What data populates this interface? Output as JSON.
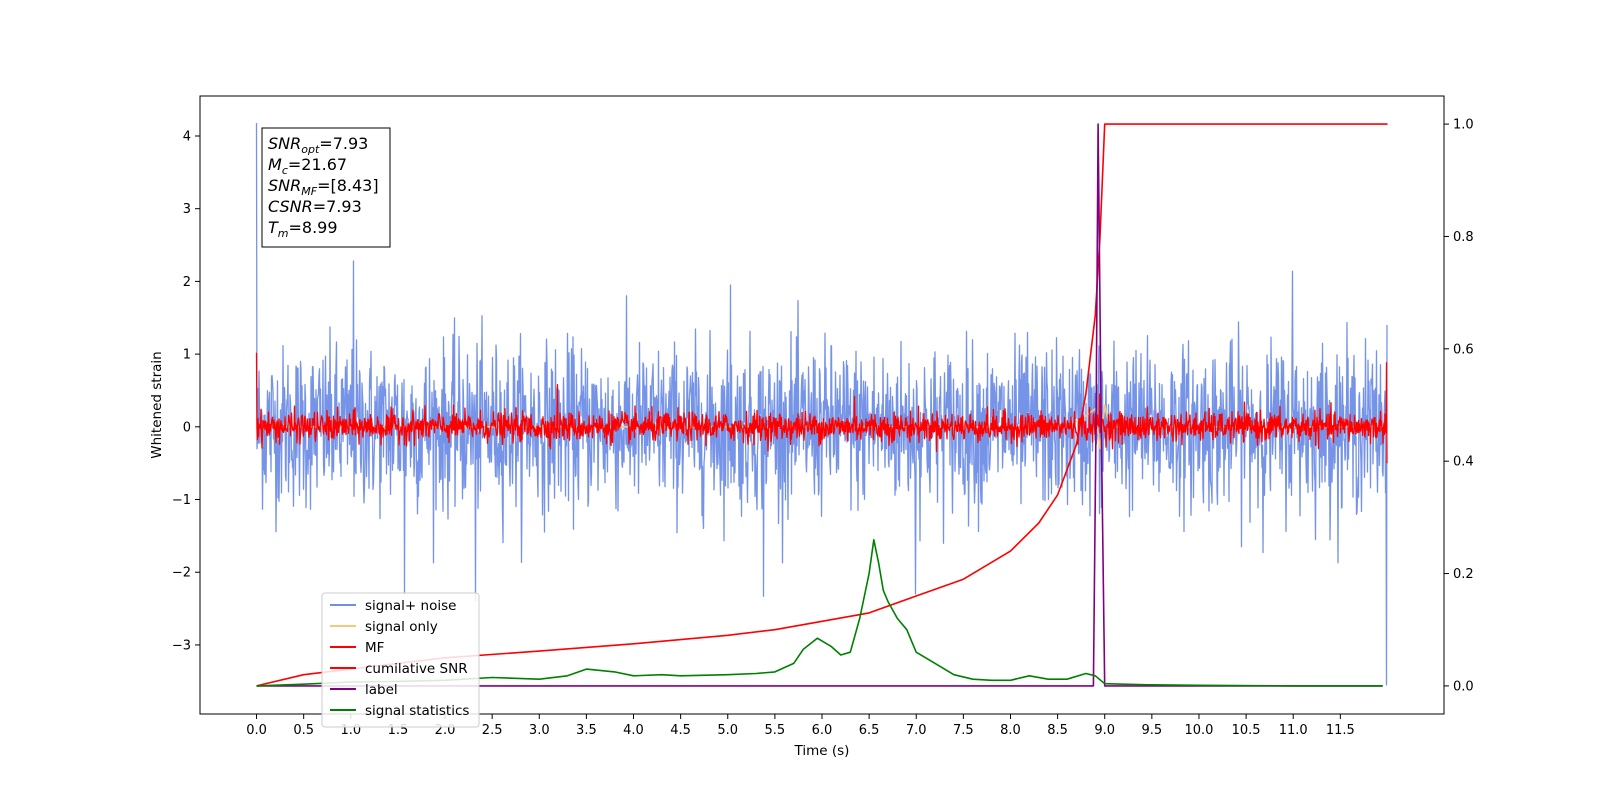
{
  "chart_data": {
    "type": "line",
    "title": "",
    "xlabel": "Time (s)",
    "ylabel": "Whitened strain",
    "y2label": "",
    "xlim": [
      -0.6,
      12.6
    ],
    "ylim": [
      -3.95,
      4.55
    ],
    "y2lim": [
      -0.05,
      1.05
    ],
    "x_ticks": [
      0.0,
      0.5,
      1.0,
      1.5,
      2.0,
      2.5,
      3.0,
      3.5,
      4.0,
      4.5,
      5.0,
      5.5,
      6.0,
      6.5,
      7.0,
      7.5,
      8.0,
      8.5,
      9.0,
      9.5,
      10.0,
      10.5,
      11.0,
      11.5
    ],
    "x_tick_labels": [
      "0.0",
      "0.5",
      "1.0",
      "1.5",
      "2.0",
      "2.5",
      "3.0",
      "3.5",
      "4.0",
      "4.5",
      "5.0",
      "5.5",
      "6.0",
      "6.5",
      "7.0",
      "7.5",
      "8.0",
      "8.5",
      "9.0",
      "9.5",
      "10.0",
      "10.5",
      "11.0",
      "11.5"
    ],
    "y_ticks": [
      4,
      3,
      2,
      1,
      0,
      -1,
      -2,
      -3
    ],
    "y_tick_labels": [
      "4",
      "3",
      "2",
      "1",
      "0",
      "−1",
      "−2",
      "−3"
    ],
    "y2_ticks": [
      1.0,
      0.8,
      0.6,
      0.4,
      0.2,
      0.0
    ],
    "y2_tick_labels": [
      "1.0",
      "0.8",
      "0.6",
      "0.4",
      "0.2",
      "0.0"
    ],
    "grid": false,
    "legend_position": "lower-left",
    "info_box": [
      {
        "sym": "SNR",
        "sub": "opt",
        "val": "=7.93"
      },
      {
        "sym": "M",
        "sub": "c",
        "val": "=21.67"
      },
      {
        "sym": "SNR",
        "sub": "MF",
        "val": "=[8.43]"
      },
      {
        "sym": "CSNR",
        "sub": "",
        "val": "=7.93"
      },
      {
        "sym": "T",
        "sub": "m",
        "val": "=8.99"
      }
    ],
    "series": [
      {
        "name": "signal+ noise",
        "axis": "left",
        "color": "#6f8ee6",
        "kind": "noise",
        "x_range": [
          0.0,
          12.0
        ],
        "std": 0.55,
        "spikes": [
          [
            0.0,
            4.18
          ],
          [
            0.0,
            -0.3
          ],
          [
            1.03,
            2.28
          ],
          [
            5.03,
            1.95
          ],
          [
            11.0,
            2.14
          ],
          [
            2.33,
            -2.4
          ],
          [
            1.58,
            -2.3
          ],
          [
            5.38,
            -2.33
          ],
          [
            7.0,
            -2.3
          ],
          [
            12.0,
            -3.55
          ],
          [
            12.0,
            1.4
          ]
        ]
      },
      {
        "name": "signal only",
        "axis": "left",
        "color": "#f5c97a",
        "x": [
          0.0,
          8.6,
          8.8,
          8.9,
          8.95,
          9.0,
          9.05,
          12.0
        ],
        "y": [
          0.0,
          0.0,
          0.15,
          0.25,
          -0.3,
          0.3,
          0.0,
          0.0
        ]
      },
      {
        "name": "MF",
        "axis": "left",
        "color": "#ff0000",
        "kind": "noise",
        "x_range": [
          0.0,
          12.0
        ],
        "std": 0.1,
        "spikes": [
          [
            0.0,
            1.02
          ],
          [
            3.2,
            0.58
          ],
          [
            6.35,
            0.42
          ],
          [
            8.95,
            0.45
          ],
          [
            12.0,
            0.88
          ],
          [
            12.0,
            -0.5
          ]
        ]
      },
      {
        "name": "cumilative SNR",
        "axis": "right",
        "color": "#ff0000",
        "x": [
          0.0,
          0.5,
          1.0,
          2.0,
          3.0,
          4.0,
          5.0,
          5.5,
          6.0,
          6.5,
          7.0,
          7.5,
          8.0,
          8.3,
          8.5,
          8.7,
          8.8,
          8.9,
          8.95,
          9.0,
          12.0
        ],
        "y": [
          0.0,
          0.02,
          0.03,
          0.05,
          0.062,
          0.075,
          0.09,
          0.1,
          0.115,
          0.13,
          0.16,
          0.19,
          0.24,
          0.29,
          0.34,
          0.43,
          0.52,
          0.66,
          0.8,
          1.0,
          1.0
        ]
      },
      {
        "name": "label",
        "axis": "right",
        "color": "#800080",
        "x": [
          0.0,
          8.88,
          8.91,
          8.93,
          8.96,
          9.0,
          11.95
        ],
        "y": [
          0.0,
          0.0,
          0.5,
          1.0,
          0.5,
          0.0,
          0.0
        ]
      },
      {
        "name": "signal statistics",
        "axis": "right",
        "color": "#008000",
        "x": [
          0.0,
          0.5,
          1.0,
          1.5,
          2.0,
          2.5,
          3.0,
          3.3,
          3.5,
          3.8,
          4.0,
          4.3,
          4.5,
          5.0,
          5.3,
          5.5,
          5.7,
          5.8,
          5.95,
          6.1,
          6.2,
          6.3,
          6.4,
          6.5,
          6.55,
          6.6,
          6.65,
          6.7,
          6.8,
          6.9,
          7.0,
          7.2,
          7.4,
          7.6,
          7.8,
          8.0,
          8.2,
          8.4,
          8.6,
          8.8,
          8.9,
          9.0,
          9.2,
          9.5,
          10.0,
          11.0,
          11.95
        ],
        "y": [
          0.0,
          0.003,
          0.007,
          0.008,
          0.01,
          0.015,
          0.012,
          0.018,
          0.03,
          0.025,
          0.018,
          0.02,
          0.018,
          0.02,
          0.022,
          0.025,
          0.04,
          0.065,
          0.085,
          0.07,
          0.055,
          0.06,
          0.12,
          0.2,
          0.26,
          0.22,
          0.17,
          0.15,
          0.12,
          0.1,
          0.06,
          0.04,
          0.02,
          0.012,
          0.01,
          0.01,
          0.018,
          0.012,
          0.012,
          0.022,
          0.018,
          0.004,
          0.003,
          0.002,
          0.001,
          0.0,
          0.0
        ]
      }
    ]
  }
}
